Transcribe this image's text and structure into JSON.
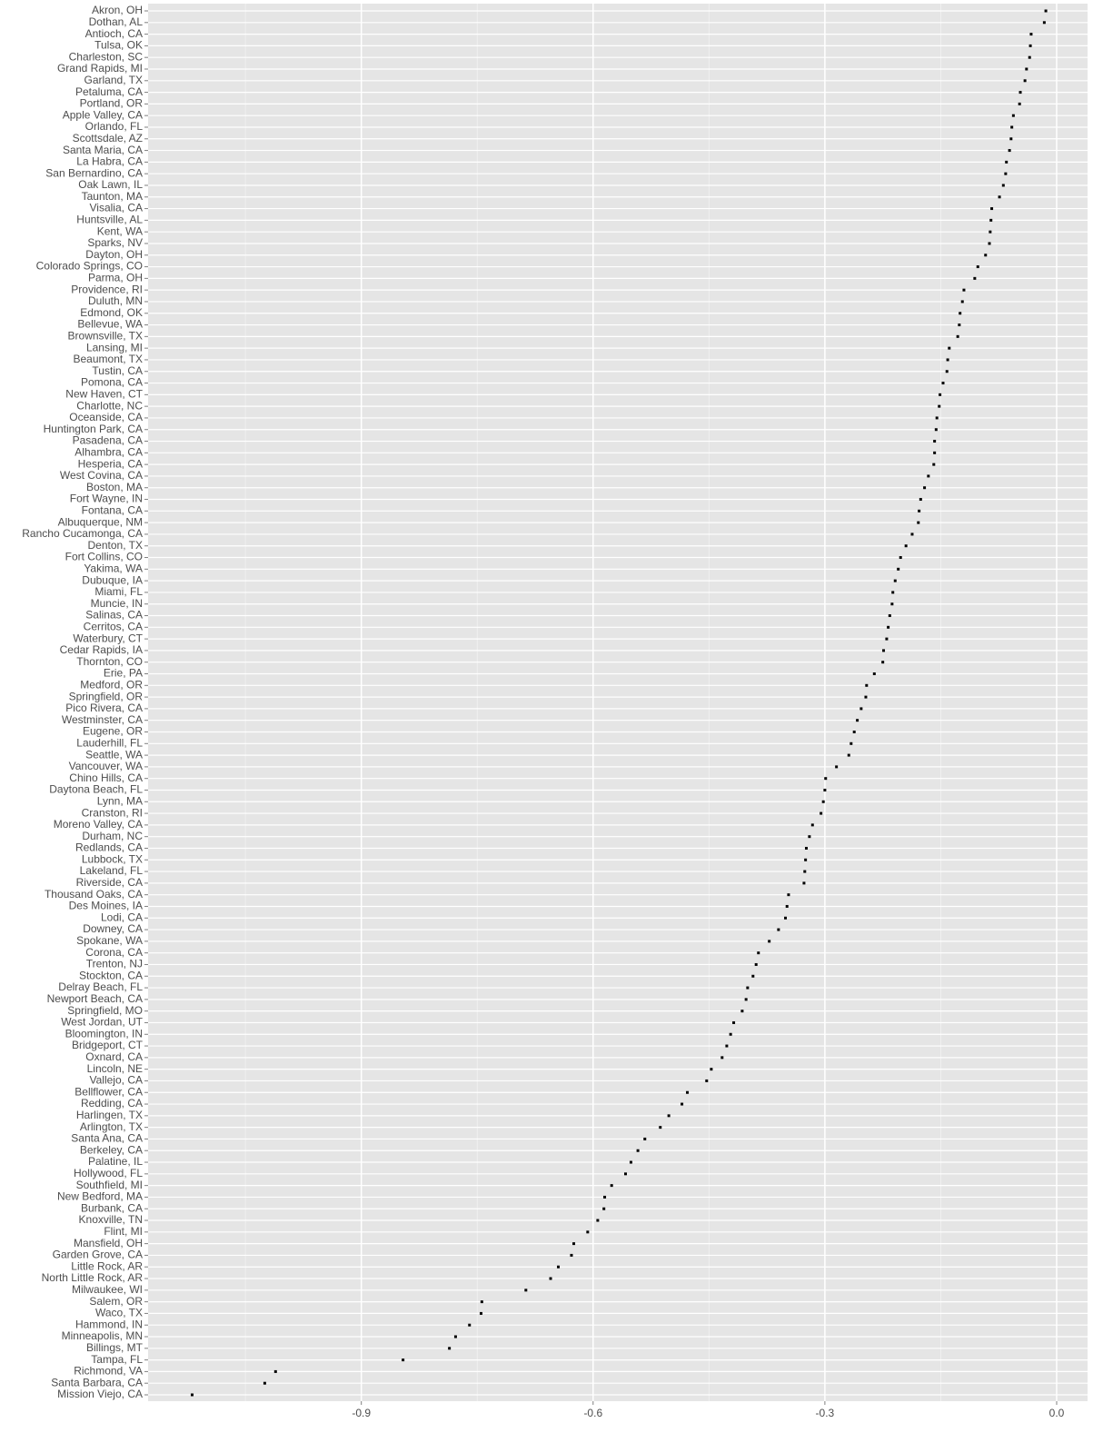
{
  "chart_data": {
    "type": "dot",
    "categories": [
      "Akron, OH",
      "Dothan, AL",
      "Antioch, CA",
      "Tulsa, OK",
      "Charleston, SC",
      "Grand Rapids, MI",
      "Garland, TX",
      "Petaluma, CA",
      "Portland, OR",
      "Apple Valley, CA",
      "Orlando, FL",
      "Scottsdale, AZ",
      "Santa Maria, CA",
      "La Habra, CA",
      "San Bernardino, CA",
      "Oak Lawn, IL",
      "Taunton, MA",
      "Visalia, CA",
      "Huntsville, AL",
      "Kent, WA",
      "Sparks, NV",
      "Dayton, OH",
      "Colorado Springs, CO",
      "Parma, OH",
      "Providence, RI",
      "Duluth, MN",
      "Edmond, OK",
      "Bellevue, WA",
      "Brownsville, TX",
      "Lansing, MI",
      "Beaumont, TX",
      "Tustin, CA",
      "Pomona, CA",
      "New Haven, CT",
      "Charlotte, NC",
      "Oceanside, CA",
      "Huntington Park, CA",
      "Pasadena, CA",
      "Alhambra, CA",
      "Hesperia, CA",
      "West Covina, CA",
      "Boston, MA",
      "Fort Wayne, IN",
      "Fontana, CA",
      "Albuquerque, NM",
      "Rancho Cucamonga, CA",
      "Denton, TX",
      "Fort Collins, CO",
      "Yakima, WA",
      "Dubuque, IA",
      "Miami, FL",
      "Muncie, IN",
      "Salinas, CA",
      "Cerritos, CA",
      "Waterbury, CT",
      "Cedar Rapids, IA",
      "Thornton, CO",
      "Erie, PA",
      "Medford, OR",
      "Springfield, OR",
      "Pico Rivera, CA",
      "Westminster, CA",
      "Eugene, OR",
      "Lauderhill, FL",
      "Seattle, WA",
      "Vancouver, WA",
      "Chino Hills, CA",
      "Daytona Beach, FL",
      "Lynn, MA",
      "Cranston, RI",
      "Moreno Valley, CA",
      "Durham, NC",
      "Redlands, CA",
      "Lubbock, TX",
      "Lakeland, FL",
      "Riverside, CA",
      "Thousand Oaks, CA",
      "Des Moines, IA",
      "Lodi, CA",
      "Downey, CA",
      "Spokane, WA",
      "Corona, CA",
      "Trenton, NJ",
      "Stockton, CA",
      "Delray Beach, FL",
      "Newport Beach, CA",
      "Springfield, MO",
      "West Jordan, UT",
      "Bloomington, IN",
      "Bridgeport, CT",
      "Oxnard, CA",
      "Lincoln, NE",
      "Vallejo, CA",
      "Bellflower, CA",
      "Redding, CA",
      "Harlingen, TX",
      "Arlington, TX",
      "Santa Ana, CA",
      "Berkeley, CA",
      "Palatine, IL",
      "Hollywood, FL",
      "Southfield, MI",
      "New Bedford, MA",
      "Burbank, CA",
      "Knoxville, TN",
      "Flint, MI",
      "Mansfield, OH",
      "Garden Grove, CA",
      "Little Rock, AR",
      "North Little Rock, AR",
      "Milwaukee, WI",
      "Salem, OR",
      "Waco, TX",
      "Hammond, IN",
      "Minneapolis, MN",
      "Billings, MT",
      "Tampa, FL",
      "Richmond, VA",
      "Santa Barbara, CA",
      "Mission Viejo, CA"
    ],
    "values": [
      -0.014,
      -0.016,
      -0.033,
      -0.034,
      -0.035,
      -0.039,
      -0.041,
      -0.047,
      -0.048,
      -0.056,
      -0.058,
      -0.059,
      -0.061,
      -0.065,
      -0.066,
      -0.069,
      -0.074,
      -0.084,
      -0.085,
      -0.086,
      -0.087,
      -0.092,
      -0.102,
      -0.106,
      -0.12,
      -0.122,
      -0.125,
      -0.126,
      -0.128,
      -0.139,
      -0.141,
      -0.142,
      -0.147,
      -0.151,
      -0.152,
      -0.155,
      -0.156,
      -0.158,
      -0.158,
      -0.159,
      -0.166,
      -0.171,
      -0.176,
      -0.178,
      -0.179,
      -0.187,
      -0.195,
      -0.202,
      -0.205,
      -0.209,
      -0.212,
      -0.213,
      -0.216,
      -0.218,
      -0.22,
      -0.224,
      -0.225,
      -0.236,
      -0.246,
      -0.247,
      -0.253,
      -0.258,
      -0.262,
      -0.266,
      -0.269,
      -0.285,
      -0.299,
      -0.3,
      -0.302,
      -0.305,
      -0.316,
      -0.32,
      -0.324,
      -0.325,
      -0.326,
      -0.327,
      -0.347,
      -0.349,
      -0.351,
      -0.36,
      -0.372,
      -0.386,
      -0.389,
      -0.393,
      -0.4,
      -0.402,
      -0.407,
      -0.418,
      -0.422,
      -0.427,
      -0.433,
      -0.447,
      -0.453,
      -0.478,
      -0.485,
      -0.502,
      -0.513,
      -0.533,
      -0.542,
      -0.551,
      -0.558,
      -0.576,
      -0.585,
      -0.586,
      -0.594,
      -0.607,
      -0.625,
      -0.628,
      -0.645,
      -0.655,
      -0.687,
      -0.744,
      -0.745,
      -0.76,
      -0.778,
      -0.786,
      -0.846,
      -1.011,
      -1.025,
      -1.119
    ],
    "color": "#000000",
    "xlim": [
      -1.176,
      0.04
    ],
    "xticks": [
      -0.9,
      -0.6,
      -0.3,
      {
        "value": 0,
        "label": "0.0"
      }
    ],
    "x_minor_grid": [
      -1.05,
      -0.75,
      -0.45,
      -0.15
    ],
    "grid": true
  }
}
